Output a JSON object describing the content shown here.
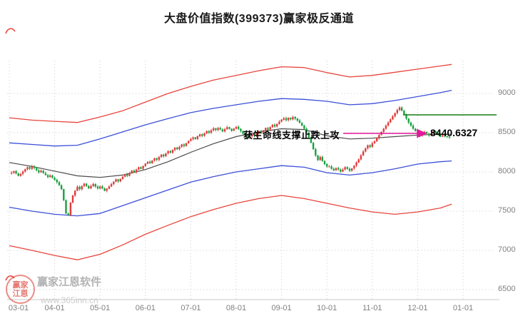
{
  "title": "大盘价值指数(399373)赢家极反通道",
  "annotation": {
    "text": "获生命线支撑止跌上攻",
    "price_label": "8440.6327",
    "arrow_color": "#e2189b"
  },
  "watermark": {
    "brand": "赢家江恩软件",
    "url": "www.365inn.cn",
    "logo_line1": "赢家",
    "logo_line2": "江恩"
  },
  "colors": {
    "up": "#e23a3a",
    "down": "#18a040",
    "rail_red": "#e8453c",
    "rail_blue": "#3c50d8",
    "rail_black": "#4a4a4a",
    "grid": "#d9d9d9",
    "axis_text": "#808080",
    "marker_green": "#177a17"
  },
  "chart_data": {
    "type": "candlestick",
    "title": "大盘价值指数(399373)赢家极反通道",
    "x_ticks": [
      "03-01",
      "04-01",
      "05-01",
      "06-01",
      "07-01",
      "08-01",
      "09-01",
      "10-01",
      "11-01",
      "12-01",
      "01-01"
    ],
    "y_ticks": [
      9000,
      8500,
      8000,
      7500,
      7000,
      6500
    ],
    "y_range": [
      6500,
      9418
    ],
    "grid": "dotted",
    "legend": "none",
    "last_price": 8440.6327,
    "start_month": 0.05,
    "month_step": 0.05,
    "closes": [
      7990,
      8010,
      7980,
      7950,
      7975,
      8005,
      8035,
      8060,
      8040,
      8070,
      8050,
      8020,
      7995,
      8015,
      7985,
      7960,
      7935,
      7955,
      7925,
      7900,
      7870,
      7830,
      7780,
      7640,
      7470,
      7450,
      7610,
      7700,
      7760,
      7810,
      7780,
      7820,
      7850,
      7820,
      7790,
      7820,
      7845,
      7815,
      7790,
      7815,
      7790,
      7760,
      7785,
      7815,
      7845,
      7875,
      7905,
      7880,
      7910,
      7940,
      7970,
      7950,
      7985,
      8015,
      7995,
      8030,
      8060,
      8040,
      8075,
      8105,
      8130,
      8110,
      8145,
      8175,
      8155,
      8190,
      8220,
      8200,
      8235,
      8265,
      8245,
      8280,
      8310,
      8290,
      8320,
      8350,
      8330,
      8365,
      8395,
      8420,
      8440,
      8420,
      8455,
      8480,
      8460,
      8490,
      8520,
      8500,
      8530,
      8555,
      8535,
      8560,
      8540,
      8515,
      8545,
      8570,
      8550,
      8525,
      8550,
      8575,
      8550,
      8520,
      8490,
      8460,
      8430,
      8455,
      8480,
      8460,
      8490,
      8520,
      8500,
      8530,
      8560,
      8540,
      8570,
      8600,
      8580,
      8610,
      8640,
      8665,
      8685,
      8660,
      8690,
      8670,
      8700,
      8680,
      8655,
      8625,
      8590,
      8550,
      8500,
      8440,
      8370,
      8290,
      8210,
      8150,
      8190,
      8140,
      8100,
      8070,
      8070,
      8040,
      8020,
      8050,
      8030,
      8005,
      8030,
      8060,
      8040,
      8015,
      8045,
      8080,
      8120,
      8160,
      8210,
      8260,
      8300,
      8340,
      8320,
      8365,
      8390,
      8430,
      8470,
      8510,
      8550,
      8590,
      8630,
      8670,
      8710,
      8750,
      8790,
      8820,
      8780,
      8730,
      8680,
      8630,
      8590,
      8550,
      8520,
      8490,
      8460,
      8485,
      8510,
      8490,
      8465,
      8490,
      8515,
      8495,
      8470,
      8450,
      8470,
      8455,
      8445,
      8440.63
    ],
    "channel": {
      "sample_months": [
        0,
        0.5,
        1,
        1.5,
        2,
        2.5,
        3,
        3.5,
        4,
        4.5,
        5,
        5.5,
        6,
        6.5,
        7,
        7.5,
        8,
        8.5,
        9,
        9.5,
        9.75
      ],
      "upper_red": [
        8690,
        8660,
        8645,
        8630,
        8700,
        8780,
        8890,
        9000,
        9090,
        9170,
        9230,
        9290,
        9340,
        9330,
        9265,
        9210,
        9230,
        9270,
        9310,
        9350,
        9370
      ],
      "upper_blue": [
        8370,
        8350,
        8330,
        8340,
        8420,
        8510,
        8600,
        8680,
        8755,
        8810,
        8855,
        8900,
        8935,
        8925,
        8900,
        8855,
        8870,
        8910,
        8960,
        9010,
        9040
      ],
      "middle_black": [
        8120,
        8070,
        8010,
        7950,
        7930,
        7960,
        8030,
        8130,
        8250,
        8360,
        8450,
        8510,
        8550,
        8540,
        8460,
        8420,
        8430,
        8450,
        8470,
        8480,
        8480
      ],
      "lower_blue": [
        7550,
        7500,
        7460,
        7440,
        7470,
        7570,
        7670,
        7770,
        7870,
        7940,
        8000,
        8040,
        8080,
        8060,
        7990,
        7960,
        7990,
        8040,
        8100,
        8130,
        8140
      ],
      "lower_red": [
        7060,
        7000,
        6935,
        6880,
        6950,
        7070,
        7205,
        7320,
        7430,
        7520,
        7600,
        7660,
        7700,
        7660,
        7600,
        7540,
        7490,
        7460,
        7490,
        7540,
        7590
      ]
    },
    "marker_line": {
      "value": 8727,
      "start_month": 8.68
    }
  }
}
